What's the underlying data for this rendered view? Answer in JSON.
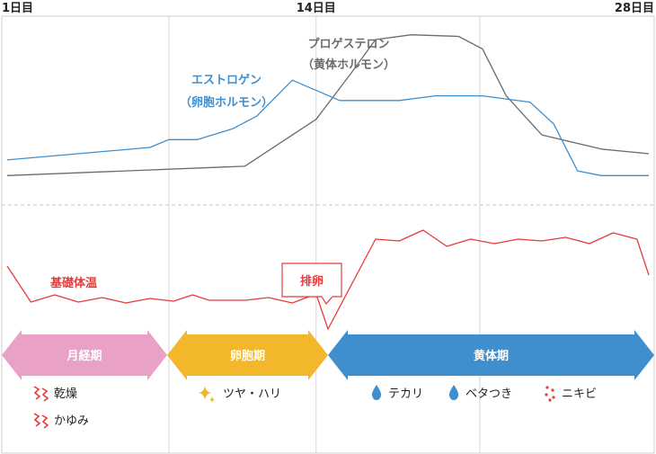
{
  "chart_data": {
    "type": "line",
    "x_axis": {
      "min_day": 1,
      "max_day": 28,
      "tick_labels": [
        {
          "day": 1,
          "label": "1日目"
        },
        {
          "day": 14,
          "label": "14日目"
        },
        {
          "day": 28,
          "label": "28日目"
        }
      ]
    },
    "series": [
      {
        "id": "progesterone",
        "name": "プロゲステロン",
        "name_sub": "（黄体ホルモン）",
        "color": "#6b6b6b",
        "points": [
          [
            1,
            0.09
          ],
          [
            11,
            0.15
          ],
          [
            14,
            0.45
          ],
          [
            15.5,
            0.75
          ],
          [
            16.5,
            0.96
          ],
          [
            18,
            0.99
          ],
          [
            20,
            0.98
          ],
          [
            21,
            0.9
          ],
          [
            22,
            0.6
          ],
          [
            23.5,
            0.35
          ],
          [
            26,
            0.26
          ],
          [
            28,
            0.23
          ]
        ]
      },
      {
        "id": "estrogen",
        "name": "エストロゲン",
        "name_sub": "（卵胞ホルモン）",
        "color": "#3f8fcf",
        "points": [
          [
            1,
            0.19
          ],
          [
            7,
            0.27
          ],
          [
            7.8,
            0.32
          ],
          [
            9,
            0.32
          ],
          [
            10.5,
            0.39
          ],
          [
            11.5,
            0.47
          ],
          [
            13,
            0.7
          ],
          [
            15,
            0.57
          ],
          [
            17.5,
            0.57
          ],
          [
            19,
            0.6
          ],
          [
            21,
            0.6
          ],
          [
            23,
            0.56
          ],
          [
            24,
            0.42
          ],
          [
            25,
            0.12
          ],
          [
            26,
            0.09
          ],
          [
            28,
            0.09
          ]
        ]
      },
      {
        "id": "bbt",
        "name": "基礎体温",
        "color": "#e63b3b",
        "points": [
          [
            1,
            0.7
          ],
          [
            2,
            0.3
          ],
          [
            3,
            0.38
          ],
          [
            4,
            0.3
          ],
          [
            5,
            0.35
          ],
          [
            6,
            0.29
          ],
          [
            7,
            0.34
          ],
          [
            8,
            0.31
          ],
          [
            8.8,
            0.38
          ],
          [
            9.5,
            0.32
          ],
          [
            11,
            0.32
          ],
          [
            12,
            0.35
          ],
          [
            13,
            0.29
          ],
          [
            14,
            0.39
          ],
          [
            14.5,
            0.0
          ],
          [
            16.5,
            1.0
          ],
          [
            17.5,
            0.98
          ],
          [
            18.5,
            1.1
          ],
          [
            19.5,
            0.92
          ],
          [
            20.5,
            1.0
          ],
          [
            21.5,
            0.95
          ],
          [
            22.5,
            1.0
          ],
          [
            23.5,
            0.98
          ],
          [
            24.5,
            1.02
          ],
          [
            25.5,
            0.95
          ],
          [
            26.5,
            1.07
          ],
          [
            27.5,
            1.0
          ],
          [
            28,
            0.6
          ]
        ]
      }
    ],
    "ovulation_label": "排卵",
    "phases": [
      {
        "id": "menstrual",
        "label": "月経期",
        "color": "#e9a1c8",
        "start_day": 1,
        "end_day": 8
      },
      {
        "id": "follicular",
        "label": "卵胞期",
        "color": "#f2b72a",
        "start_day": 8,
        "end_day": 14
      },
      {
        "id": "luteal",
        "label": "黄体期",
        "color": "#3f8fcf",
        "start_day": 14,
        "end_day": 28
      }
    ],
    "symptoms": [
      {
        "phase": "menstrual",
        "icon": "zigzag-icon",
        "icon_color": "#e63b3b",
        "label": "乾燥"
      },
      {
        "phase": "menstrual",
        "icon": "zigzag-icon",
        "icon_color": "#e63b3b",
        "label": "かゆみ"
      },
      {
        "phase": "follicular",
        "icon": "sparkle-icon",
        "icon_color": "#f2b72a",
        "label": "ツヤ・ハリ"
      },
      {
        "phase": "luteal",
        "icon": "drop-icon",
        "icon_color": "#3f8fcf",
        "label": "テカリ"
      },
      {
        "phase": "luteal",
        "icon": "drop-icon",
        "icon_color": "#3f8fcf",
        "label": "ベタつき"
      },
      {
        "phase": "luteal",
        "icon": "dots-icon",
        "icon_color": "#e63b3b",
        "label": "ニキビ"
      }
    ]
  }
}
